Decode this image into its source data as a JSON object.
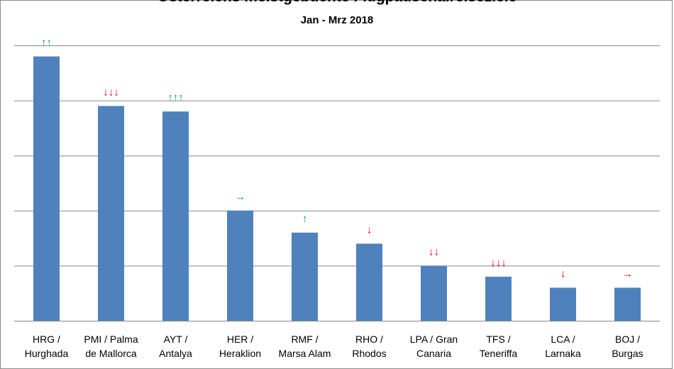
{
  "chart_data": {
    "type": "bar",
    "title": "Österreichs meistgebuchte Flugpauschalreiseziele",
    "subtitle": "Jan - Mrz 2018",
    "categories": [
      [
        "HRG /",
        "Hurghada"
      ],
      [
        "PMI / Palma",
        "de Mallorca"
      ],
      [
        "AYT /",
        "Antalya"
      ],
      [
        "HER /",
        "Heraklion"
      ],
      [
        "RMF /",
        "Marsa Alam"
      ],
      [
        "RHO /",
        "Rhodos"
      ],
      [
        "LPA / Gran",
        "Canaria"
      ],
      [
        "TFS /",
        "Teneriffa"
      ],
      [
        "LCA /",
        "Larnaka"
      ],
      [
        "BOJ /",
        "Burgas"
      ]
    ],
    "values": [
      9.6,
      7.8,
      7.6,
      4.0,
      3.2,
      2.8,
      2.0,
      1.6,
      1.2,
      1.2
    ],
    "trend_markers": [
      "↑↑",
      "↓↓↓",
      "↑↑↑",
      "→",
      "↑",
      "↓",
      "↓↓",
      "↓↓↓",
      "↓",
      "→"
    ],
    "trend_colors": [
      "#00a650",
      "#e00000",
      "#00a650",
      "#00a650",
      "#00a650",
      "#e00000",
      "#e00000",
      "#e00000",
      "#e00000",
      "#e00000"
    ],
    "ylim": [
      0,
      10
    ],
    "grid": true,
    "y_ticks_shown": false,
    "bar_color": "#4f81bd"
  }
}
